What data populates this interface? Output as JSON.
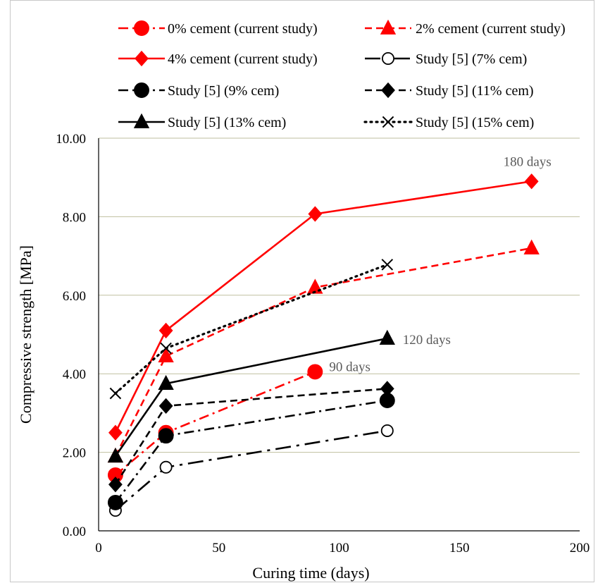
{
  "chart_data": {
    "type": "line",
    "xlabel": "Curing time (days)",
    "ylabel": "Compressive strength [MPa]",
    "xlim": [
      0,
      200
    ],
    "ylim": [
      0,
      10
    ],
    "x_ticks": [
      "0",
      "50",
      "100",
      "150",
      "200"
    ],
    "y_ticks": [
      "0.00",
      "2.00",
      "4.00",
      "6.00",
      "8.00",
      "10.00"
    ],
    "grid": "horizontal",
    "legend_position": "top",
    "series": [
      {
        "name": "0% cement (current study)",
        "color": "#ff0000",
        "marker": "circle-filled",
        "line": "dashdot",
        "x": [
          7,
          28,
          90
        ],
        "y": [
          1.42,
          2.5,
          4.05
        ]
      },
      {
        "name": "2% cement (current study)",
        "color": "#ff0000",
        "marker": "triangle",
        "line": "dashed",
        "x": [
          7,
          28,
          90,
          180
        ],
        "y": [
          1.9,
          4.45,
          6.2,
          7.2
        ]
      },
      {
        "name": "4% cement (current study)",
        "color": "#ff0000",
        "marker": "diamond",
        "line": "solid",
        "x": [
          7,
          28,
          90,
          180
        ],
        "y": [
          2.5,
          5.1,
          8.07,
          8.9
        ]
      },
      {
        "name": "Study [5] (7% cem)",
        "color": "#000000",
        "marker": "circle-open",
        "line": "longdashdot",
        "x": [
          7,
          28,
          120
        ],
        "y": [
          0.52,
          1.62,
          2.55
        ]
      },
      {
        "name": "Study [5] (9% cem)",
        "color": "#000000",
        "marker": "circle-filled",
        "line": "dashdot",
        "x": [
          7,
          28,
          120
        ],
        "y": [
          0.72,
          2.42,
          3.32
        ]
      },
      {
        "name": "Study [5] (11% cem)",
        "color": "#000000",
        "marker": "diamond",
        "line": "dashed",
        "x": [
          7,
          28,
          120
        ],
        "y": [
          1.18,
          3.18,
          3.62
        ]
      },
      {
        "name": "Study [5] (13% cem)",
        "color": "#000000",
        "marker": "triangle",
        "line": "solid",
        "x": [
          7,
          28,
          120
        ],
        "y": [
          1.9,
          3.75,
          4.9
        ]
      },
      {
        "name": "Study [5] (15% cem)",
        "color": "#000000",
        "marker": "x",
        "line": "dotted",
        "x": [
          7,
          28,
          120
        ],
        "y": [
          3.5,
          4.65,
          6.78
        ]
      }
    ],
    "annotations": [
      {
        "text": "180 days",
        "x": 180,
        "y": 8.9
      },
      {
        "text": "120 days",
        "x": 120,
        "y": 4.9
      },
      {
        "text": "90 days",
        "x": 90,
        "y": 4.05
      }
    ]
  }
}
